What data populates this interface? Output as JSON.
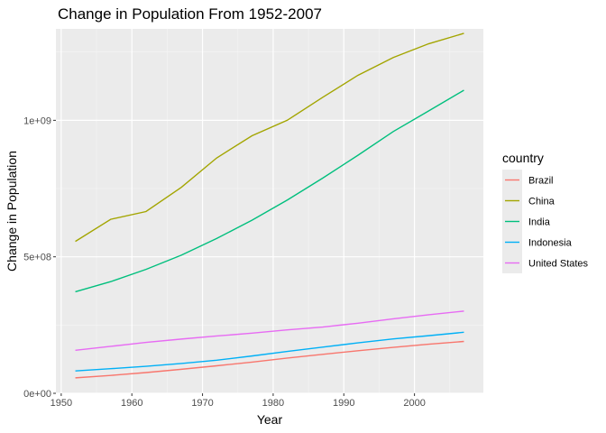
{
  "chart_data": {
    "type": "line",
    "title": "Change in Population From 1952-2007",
    "xlabel": "Year",
    "ylabel": "Change in Population",
    "x": [
      1952,
      1957,
      1962,
      1967,
      1972,
      1977,
      1982,
      1987,
      1992,
      1997,
      2002,
      2007
    ],
    "xlim": [
      1949.25,
      2009.75
    ],
    "ylim": [
      0,
      1335000000.0
    ],
    "x_ticks": [
      1950,
      1960,
      1970,
      1980,
      1990,
      2000
    ],
    "x_tick_labels": [
      "1950",
      "1960",
      "1970",
      "1980",
      "1990",
      "2000"
    ],
    "y_ticks": [
      0,
      500000000,
      1000000000
    ],
    "y_tick_labels": [
      "0e+00",
      "5e+08",
      "1e+09"
    ],
    "grid": true,
    "legend_title": "country",
    "legend_position": "right",
    "series": [
      {
        "name": "Brazil",
        "color": "#F8766D",
        "values": [
          56600000,
          65500000,
          76000000,
          88000000,
          100800000,
          114300000,
          128900000,
          142900000,
          155900000,
          168500000,
          179900000,
          190000000
        ]
      },
      {
        "name": "China",
        "color": "#A3A500",
        "values": [
          556300000,
          637400000,
          665800000,
          754600000,
          862000000,
          943500000,
          1000300000,
          1084000000,
          1164970000,
          1230080000,
          1280400000,
          1318700000
        ]
      },
      {
        "name": "India",
        "color": "#00BF7D",
        "values": [
          372000000,
          409000000,
          454000000,
          506000000,
          567000000,
          634000000,
          708000000,
          788000000,
          872000000,
          959000000,
          1034200000,
          1110400000
        ]
      },
      {
        "name": "Indonesia",
        "color": "#00B0F6",
        "values": [
          82100000,
          90100000,
          99000000,
          109300000,
          121300000,
          136700000,
          153300000,
          169300000,
          184800000,
          199300000,
          211100000,
          223500000
        ]
      },
      {
        "name": "United States",
        "color": "#E76BF3",
        "values": [
          157500000,
          171900000,
          186500000,
          198700000,
          209900000,
          220200000,
          232200000,
          242800000,
          256900000,
          272900000,
          287700000,
          301100000
        ]
      }
    ]
  }
}
